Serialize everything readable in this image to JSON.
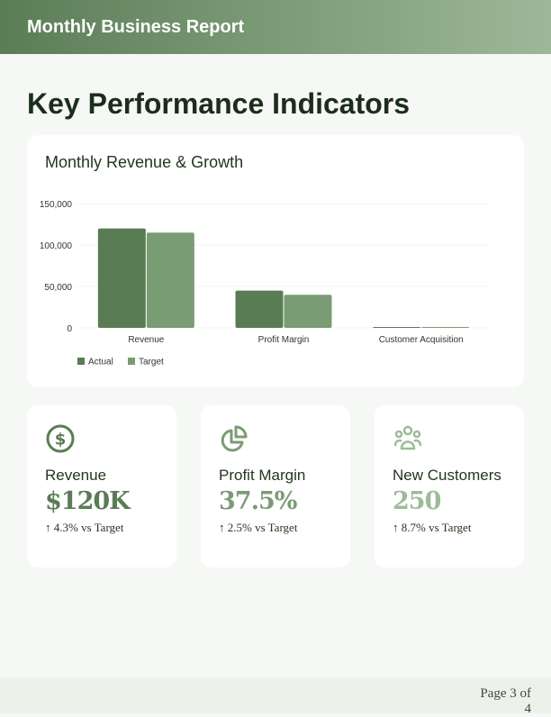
{
  "header": {
    "title": "Monthly Business Report"
  },
  "page_title": "Key Performance Indicators",
  "chart_data": {
    "type": "bar",
    "title": "Monthly Revenue & Growth",
    "categories": [
      "Revenue",
      "Profit Margin",
      "Customer Acquisition"
    ],
    "series": [
      {
        "name": "Actual",
        "values": [
          120000,
          45000,
          250
        ],
        "color": "#5a7c54"
      },
      {
        "name": "Target",
        "values": [
          115000,
          40000,
          230
        ],
        "color": "#7a9c74"
      }
    ],
    "yticks": [
      "0",
      "50,000",
      "100,000",
      "150,000"
    ],
    "ylim": [
      0,
      150000
    ],
    "grid": true,
    "legend": "bottom-left"
  },
  "kpis": [
    {
      "icon": "dollar-circle-icon",
      "label": "Revenue",
      "value": "$120K",
      "change": "↑ 4.3% vs Target",
      "color": "#5a7c54"
    },
    {
      "icon": "pie-chart-icon",
      "label": "Profit Margin",
      "value": "37.5%",
      "change": "↑ 2.5% vs Target",
      "color": "#7a9c74"
    },
    {
      "icon": "users-icon",
      "label": "New Customers",
      "value": "250",
      "change": "↑ 8.7% vs Target",
      "color": "#9dbb98"
    }
  ],
  "footer": {
    "page": "Page 3 of 4"
  }
}
